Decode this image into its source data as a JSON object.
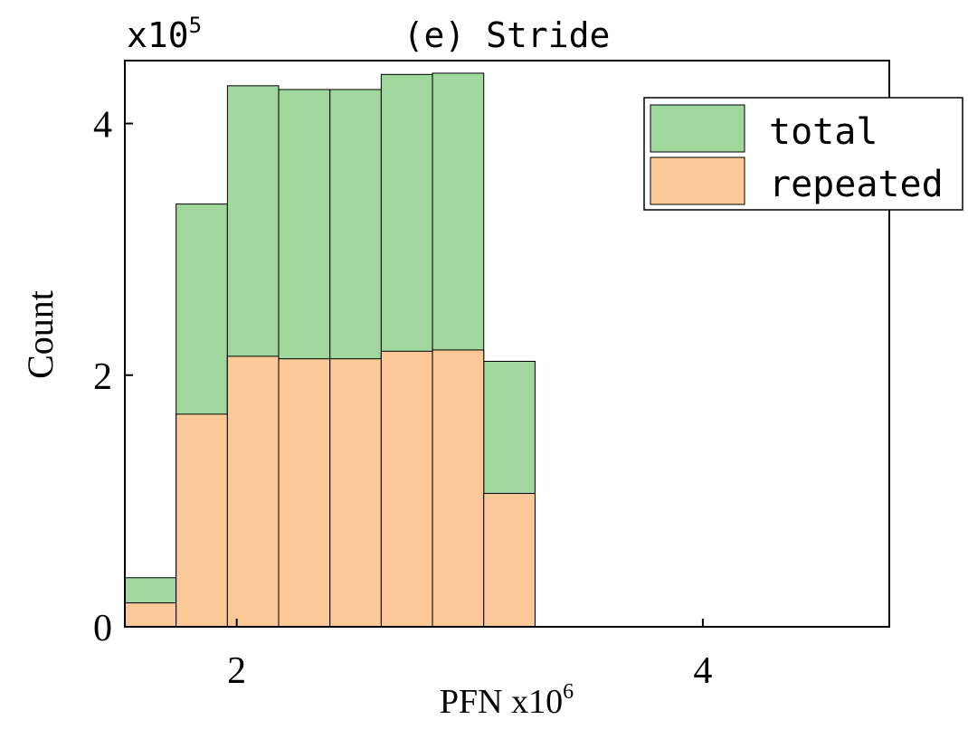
{
  "chart_data": {
    "type": "bar",
    "stacked_overlay": true,
    "title": "(e) Stride",
    "xlabel": "PFN x10",
    "xlabel_exponent": "6",
    "ylabel": "Count",
    "y_multiplier": "x10",
    "y_multiplier_exponent": "5",
    "xlim": [
      1.52,
      4.8
    ],
    "ylim": [
      0,
      4.5
    ],
    "x_ticks": [
      {
        "value": 2,
        "label": "2"
      },
      {
        "value": 4,
        "label": "4"
      }
    ],
    "y_ticks": [
      {
        "value": 0,
        "label": "0"
      },
      {
        "value": 2,
        "label": "2"
      },
      {
        "value": 4,
        "label": "4"
      }
    ],
    "grid": false,
    "legend_position": "top-right",
    "colors": {
      "total": "#9fd79c",
      "repeated": "#fbc898",
      "edge": "#000000"
    },
    "bin_edges": [
      1.52,
      1.74,
      1.96,
      2.18,
      2.4,
      2.62,
      2.84,
      3.06,
      3.28
    ],
    "series": [
      {
        "name": "total",
        "values": [
          0.39,
          3.36,
          4.3,
          4.27,
          4.27,
          4.39,
          4.4,
          2.11
        ]
      },
      {
        "name": "repeated",
        "values": [
          0.19,
          1.69,
          2.15,
          2.13,
          2.13,
          2.19,
          2.2,
          1.06
        ]
      }
    ]
  }
}
